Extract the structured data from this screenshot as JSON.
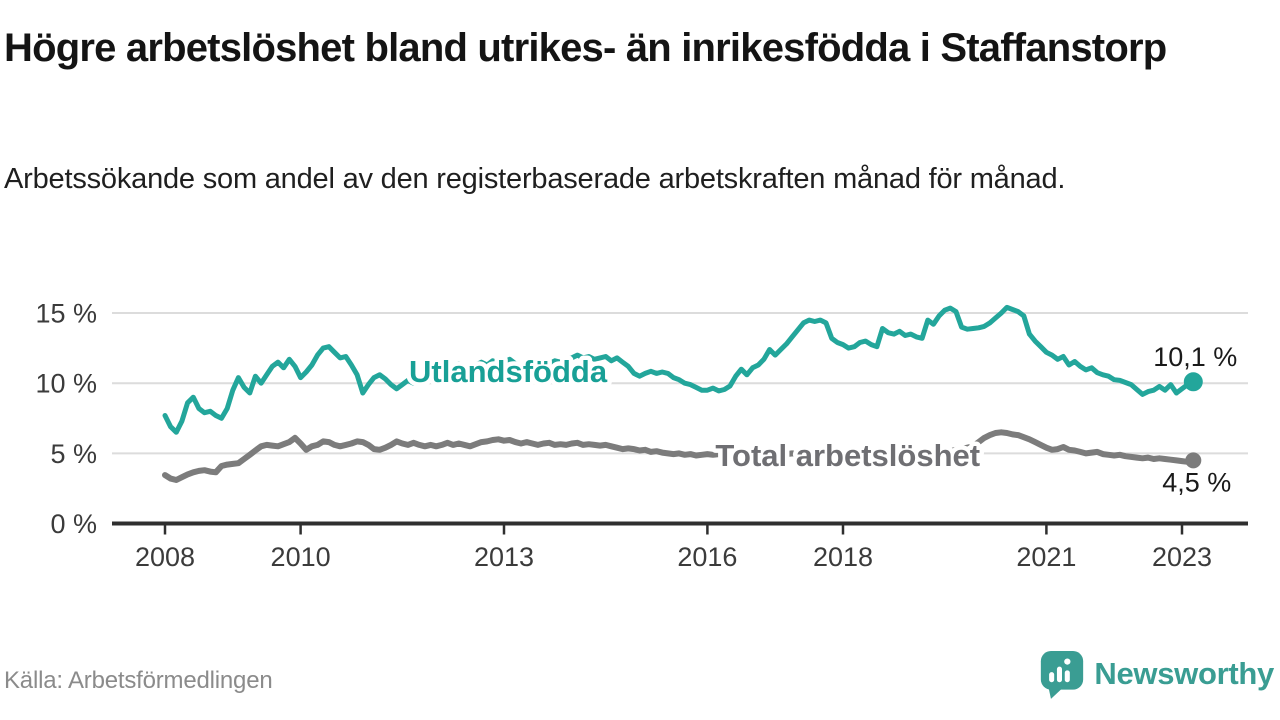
{
  "header": {
    "title": "Högre arbetslöshet bland utrikes- än inrikesfödda i Staffanstorp",
    "subtitle": "Arbetssökande som andel av den registerbaserade arbetskraften månad för månad."
  },
  "footer": {
    "source": "Källa: Arbetsförmedlingen",
    "brand": "Newsworthy",
    "brand_icon": "newsworthy-speech-bubble-bar-chart-icon"
  },
  "colors": {
    "background": "#ffffff",
    "teal_series": "#23a69b",
    "gray_series": "#7c7c7c",
    "gray_label": "#6f6f73",
    "gridline": "#dcdcdc",
    "axis_line": "#2f2f2f",
    "tick_text": "#3b3b3b",
    "value_text": "#1a1a1a",
    "title_text": "#141414",
    "source_text": "#8b8b8b",
    "brand_teal": "#3a9d93"
  },
  "chart_data": {
    "type": "line",
    "title": "Högre arbetslöshet bland utrikes- än inrikesfödda i Staffanstorp",
    "subtitle": "Arbetssökande som andel av den registerbaserade arbetskraften månad för månad.",
    "unit": "%",
    "grid": "horizontal",
    "x_axis": {
      "range_years": [
        2007.2,
        2024.0
      ],
      "ticks": [
        2008,
        2010,
        2013,
        2016,
        2018,
        2021,
        2023
      ],
      "tick_labels": [
        "2008",
        "2010",
        "2013",
        "2016",
        "2018",
        "2021",
        "2023"
      ]
    },
    "y_axis": {
      "range": [
        0,
        16
      ],
      "ticks": [
        0,
        5,
        10,
        15
      ],
      "tick_labels": [
        "0 %",
        "5 %",
        "10 %",
        "15 %"
      ]
    },
    "series": [
      {
        "name": "Utlandsfödda",
        "color": "#23a69b",
        "label_color": "#18a096",
        "line_width": 5,
        "dot_radius": 9.5,
        "end_label": "10,1 %",
        "end_value": 10.1,
        "label_pos": {
          "year": 2013.06,
          "value": 10.87
        },
        "start_year": 2008,
        "start_month": 1,
        "interval": "month",
        "values": [
          7.7,
          6.9,
          6.5,
          7.3,
          8.6,
          9.0,
          8.2,
          7.9,
          8.0,
          7.7,
          7.5,
          8.2,
          9.5,
          10.4,
          9.7,
          9.3,
          10.5,
          10.0,
          10.6,
          11.2,
          11.5,
          11.1,
          11.7,
          11.2,
          10.4,
          10.8,
          11.3,
          12.0,
          12.5,
          12.6,
          12.2,
          11.8,
          11.9,
          11.3,
          10.6,
          9.3,
          9.9,
          10.4,
          10.6,
          10.3,
          9.9,
          9.6,
          9.9,
          10.2,
          10.0,
          10.3,
          10.6,
          10.4,
          10.7,
          11.0,
          11.3,
          11.1,
          11.4,
          11.2,
          11.0,
          11.3,
          11.5,
          11.3,
          11.6,
          11.4,
          11.5,
          11.7,
          11.4,
          11.2,
          11.5,
          11.3,
          11.0,
          11.2,
          11.4,
          11.6,
          11.5,
          11.7,
          11.8,
          12.0,
          11.8,
          11.9,
          11.7,
          11.8,
          11.9,
          11.6,
          11.8,
          11.5,
          11.2,
          10.7,
          10.5,
          10.7,
          10.85,
          10.7,
          10.8,
          10.7,
          10.4,
          10.25,
          10.0,
          9.9,
          9.7,
          9.5,
          9.5,
          9.65,
          9.45,
          9.55,
          9.8,
          10.5,
          11.0,
          10.6,
          11.1,
          11.3,
          11.7,
          12.4,
          12.0,
          12.4,
          12.8,
          13.3,
          13.8,
          14.3,
          14.5,
          14.4,
          14.5,
          14.3,
          13.2,
          12.9,
          12.75,
          12.5,
          12.6,
          12.9,
          13.0,
          12.75,
          12.6,
          13.9,
          13.6,
          13.5,
          13.7,
          13.4,
          13.5,
          13.3,
          13.2,
          14.5,
          14.2,
          14.8,
          15.2,
          15.35,
          15.1,
          14.0,
          13.85,
          13.9,
          13.95,
          14.05,
          14.3,
          14.65,
          15.0,
          15.4,
          15.25,
          15.1,
          14.8,
          13.5,
          13.0,
          12.6,
          12.2,
          12.0,
          11.7,
          11.9,
          11.3,
          11.55,
          11.2,
          10.95,
          11.1,
          10.75,
          10.6,
          10.5,
          10.25,
          10.2,
          10.05,
          9.9,
          9.55,
          9.2,
          9.4,
          9.5,
          9.77,
          9.5,
          9.9,
          9.3,
          9.6,
          9.9,
          10.1
        ]
      },
      {
        "name": "Total arbetslöshet",
        "color": "#7c7c7c",
        "label_color": "#6f6f73",
        "line_width": 6,
        "dot_radius": 8,
        "end_label": "4,5 %",
        "end_value": 4.5,
        "label_pos": {
          "year": 2018.07,
          "value": 4.88
        },
        "start_year": 2008,
        "start_month": 1,
        "interval": "month",
        "values": [
          3.45,
          3.2,
          3.1,
          3.3,
          3.5,
          3.65,
          3.75,
          3.8,
          3.7,
          3.65,
          4.1,
          4.2,
          4.25,
          4.3,
          4.6,
          4.9,
          5.2,
          5.5,
          5.6,
          5.55,
          5.5,
          5.65,
          5.8,
          6.1,
          5.7,
          5.25,
          5.5,
          5.6,
          5.85,
          5.8,
          5.6,
          5.5,
          5.6,
          5.7,
          5.85,
          5.8,
          5.6,
          5.3,
          5.25,
          5.4,
          5.6,
          5.85,
          5.7,
          5.6,
          5.75,
          5.6,
          5.5,
          5.6,
          5.5,
          5.6,
          5.75,
          5.6,
          5.7,
          5.6,
          5.5,
          5.65,
          5.8,
          5.85,
          5.95,
          6.0,
          5.9,
          5.95,
          5.8,
          5.7,
          5.8,
          5.7,
          5.6,
          5.7,
          5.75,
          5.6,
          5.65,
          5.6,
          5.7,
          5.75,
          5.6,
          5.65,
          5.6,
          5.55,
          5.6,
          5.5,
          5.4,
          5.3,
          5.35,
          5.3,
          5.2,
          5.25,
          5.1,
          5.15,
          5.05,
          5.0,
          4.95,
          5.0,
          4.9,
          4.95,
          4.85,
          4.9,
          4.95,
          4.9,
          4.95,
          4.85,
          4.9,
          4.8,
          4.85,
          4.9,
          4.85,
          4.8,
          4.85,
          4.9,
          4.85,
          4.9,
          4.95,
          5.0,
          4.95,
          5.0,
          5.05,
          5.0,
          4.95,
          4.9,
          4.95,
          4.9,
          4.95,
          4.9,
          4.85,
          4.9,
          4.95,
          4.9,
          4.85,
          4.9,
          4.95,
          5.0,
          4.95,
          5.0,
          5.0,
          5.05,
          5.0,
          5.1,
          5.15,
          5.1,
          5.2,
          5.15,
          5.25,
          5.3,
          5.4,
          5.5,
          5.8,
          6.1,
          6.3,
          6.45,
          6.5,
          6.45,
          6.35,
          6.3,
          6.15,
          6.0,
          5.8,
          5.6,
          5.4,
          5.25,
          5.3,
          5.45,
          5.25,
          5.2,
          5.1,
          5.0,
          5.05,
          5.1,
          4.95,
          4.9,
          4.85,
          4.9,
          4.8,
          4.75,
          4.7,
          4.65,
          4.7,
          4.6,
          4.65,
          4.6,
          4.55,
          4.5,
          4.45,
          4.4,
          4.5
        ]
      }
    ]
  }
}
